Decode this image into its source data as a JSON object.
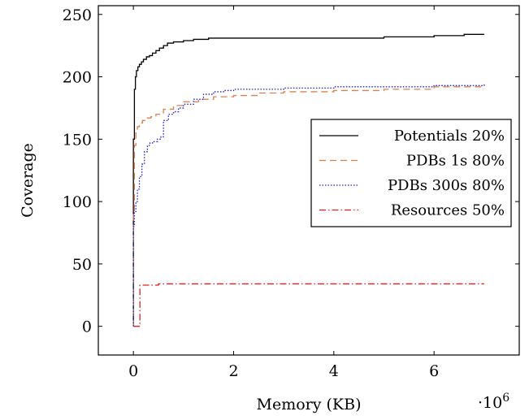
{
  "chart_data": {
    "type": "line",
    "xlabel": "Memory (KB)",
    "ylabel": "Coverage",
    "x_multiplier_label": "·10",
    "x_multiplier_exponent": "6",
    "xlim": [
      -700000,
      7700000
    ],
    "ylim": [
      -23,
      257
    ],
    "x_ticks": [
      0,
      2000000,
      4000000,
      6000000
    ],
    "x_tick_labels": [
      "0",
      "2",
      "4",
      "6"
    ],
    "y_ticks": [
      0,
      50,
      100,
      150,
      200,
      250
    ],
    "y_tick_labels": [
      "0",
      "50",
      "100",
      "150",
      "200",
      "250"
    ],
    "grid": false,
    "legend_position": "center-right",
    "series": [
      {
        "name": "Potentials 20%",
        "color": "#000000",
        "style": "solid",
        "x": [
          0,
          0,
          20000,
          40000,
          60000,
          90000,
          120000,
          160000,
          200000,
          260000,
          320000,
          380000,
          450000,
          520000,
          600000,
          680000,
          800000,
          1000000,
          1200000,
          1500000,
          2000000,
          3000000,
          4000000,
          4900000,
          5000000,
          6000000,
          6600000,
          7000000
        ],
        "y": [
          0,
          150,
          190,
          200,
          205,
          208,
          210,
          212,
          214,
          216,
          217,
          219,
          221,
          223,
          225,
          227,
          228,
          229,
          230,
          231,
          231,
          231,
          231,
          231,
          232,
          233,
          234,
          234
        ]
      },
      {
        "name": "PDBs 1s 80%",
        "color": "#d9804c",
        "style": "dashed",
        "x": [
          0,
          0,
          20000,
          50000,
          80000,
          120000,
          180000,
          250000,
          350000,
          450000,
          600000,
          800000,
          1000000,
          1300000,
          1600000,
          2000000,
          2500000,
          3000000,
          4000000,
          5000000,
          6000000,
          7000000
        ],
        "y": [
          0,
          90,
          145,
          155,
          160,
          163,
          165,
          167,
          168,
          170,
          174,
          177,
          180,
          182,
          184,
          185,
          187,
          188,
          189,
          190,
          192,
          193
        ]
      },
      {
        "name": "PDBs 300s 80%",
        "color": "#1f1fd6",
        "style": "dotted",
        "x": [
          0,
          0,
          20000,
          50000,
          80000,
          120000,
          170000,
          220000,
          280000,
          330000,
          400000,
          480000,
          550000,
          600000,
          700000,
          800000,
          900000,
          1000000,
          1200000,
          1400000,
          1600000,
          1800000,
          2000000,
          3000000,
          4000000,
          5000000,
          6000000,
          7000000
        ],
        "y": [
          0,
          80,
          92,
          100,
          110,
          120,
          130,
          140,
          145,
          147,
          148,
          150,
          152,
          165,
          170,
          172,
          175,
          178,
          182,
          186,
          188,
          189,
          190,
          191,
          192,
          192,
          193,
          194
        ]
      },
      {
        "name": "Resources 50%",
        "color": "#e02020",
        "style": "dashdot",
        "x": [
          0,
          120000,
          130000,
          500000,
          1000000,
          2000000,
          3000000,
          4000000,
          5000000,
          6000000,
          7000000
        ],
        "y": [
          0,
          0,
          33,
          34,
          34,
          34,
          34,
          34,
          34,
          34,
          34
        ]
      }
    ]
  }
}
